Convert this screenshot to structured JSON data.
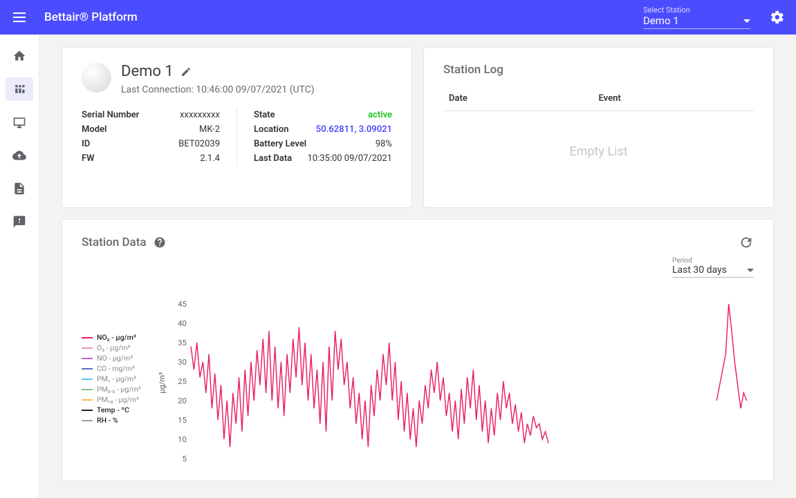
{
  "header": {
    "brand": "Bettair® Platform",
    "station_select_label": "Select Station",
    "station_select_value": "Demo 1"
  },
  "station_card": {
    "name": "Demo 1",
    "last_connection_label": "Last Connection: 10:46:00 09/07/2021 (UTC)",
    "left": {
      "serial_label": "Serial Number",
      "serial_val": "xxxxxxxxx",
      "model_label": "Model",
      "model_val": "MK-2",
      "id_label": "ID",
      "id_val": "BET02039",
      "fw_label": "FW",
      "fw_val": "2.1.4"
    },
    "right": {
      "state_label": "State",
      "state_val": "active",
      "location_label": "Location",
      "location_val": "50.62811, 3.09021",
      "battery_label": "Battery Level",
      "battery_val": "98%",
      "lastdata_label": "Last Data",
      "lastdata_val": "10:35:00 09/07/2021"
    }
  },
  "log_card": {
    "title": "Station Log",
    "col_date": "Date",
    "col_event": "Event",
    "empty": "Empty List"
  },
  "data_card": {
    "title": "Station Data",
    "period_label": "Period",
    "period_value": "Last 30 days"
  },
  "chart": {
    "type": "line",
    "y_label": "µg/m³",
    "ylim": [
      5,
      45
    ],
    "ytick_step": 5,
    "yticks": [
      5,
      10,
      15,
      20,
      25,
      30,
      35,
      40,
      45
    ],
    "background_color": "#ffffff",
    "axis_color": "#999999",
    "tick_font_size": 11,
    "legend": [
      {
        "label": "NO₂ - µg/m³",
        "color": "#e91e63",
        "bold": true
      },
      {
        "label": "O₃ - µg/m³",
        "color": "#f48fb1",
        "bold": false
      },
      {
        "label": "NO - µg/m³",
        "color": "#ba68c8",
        "bold": false
      },
      {
        "label": "CO - mg/m³",
        "color": "#5c6bc0",
        "bold": false
      },
      {
        "label": "PM₁ - µg/m³",
        "color": "#4dd0e1",
        "bold": false
      },
      {
        "label": "PM₂.₅ - µg/m³",
        "color": "#81c784",
        "bold": false
      },
      {
        "label": "PM₁₀ - µg/m³",
        "color": "#ffb74d",
        "bold": false
      },
      {
        "label": "Temp - ºC",
        "color": "#212121",
        "bold": true
      },
      {
        "label": "RH - %",
        "color": "#9e9e9e",
        "bold": true
      }
    ],
    "active_series": {
      "color": "#e91e63",
      "line_width": 1.4,
      "values": [
        34,
        28,
        35,
        26,
        30,
        22,
        32,
        18,
        27,
        15,
        24,
        10,
        20,
        8,
        22,
        14,
        26,
        12,
        28,
        16,
        30,
        20,
        33,
        24,
        36,
        22,
        38,
        20,
        34,
        18,
        30,
        16,
        32,
        22,
        36,
        26,
        39,
        24,
        35,
        20,
        32,
        18,
        28,
        14,
        30,
        12,
        34,
        20,
        38,
        28,
        36,
        24,
        30,
        18,
        26,
        14,
        22,
        10,
        20,
        8,
        24,
        16,
        28,
        20,
        32,
        24,
        35,
        20,
        30,
        15,
        25,
        12,
        22,
        10,
        18,
        8,
        20,
        14,
        24,
        18,
        28,
        22,
        30,
        20,
        26,
        16,
        22,
        12,
        20,
        10,
        23,
        14,
        26,
        18,
        28,
        15,
        24,
        12,
        20,
        9,
        18,
        11,
        22,
        15,
        25,
        18,
        22,
        14,
        19,
        12,
        17,
        9,
        14,
        11,
        16,
        13,
        14,
        10,
        12,
        9,
        null,
        null,
        null,
        null,
        null,
        null,
        null,
        null,
        null,
        null,
        null,
        null,
        null,
        null,
        null,
        null,
        null,
        null,
        null,
        null,
        null,
        null,
        null,
        null,
        null,
        null,
        null,
        null,
        null,
        null,
        null,
        null,
        null,
        null,
        null,
        null,
        null,
        null,
        null,
        null,
        null,
        null,
        null,
        null,
        null,
        null,
        null,
        null,
        null,
        null,
        null,
        null,
        null,
        null,
        null,
        20,
        24,
        28,
        32,
        45,
        38,
        30,
        24,
        18,
        22,
        20
      ]
    }
  }
}
